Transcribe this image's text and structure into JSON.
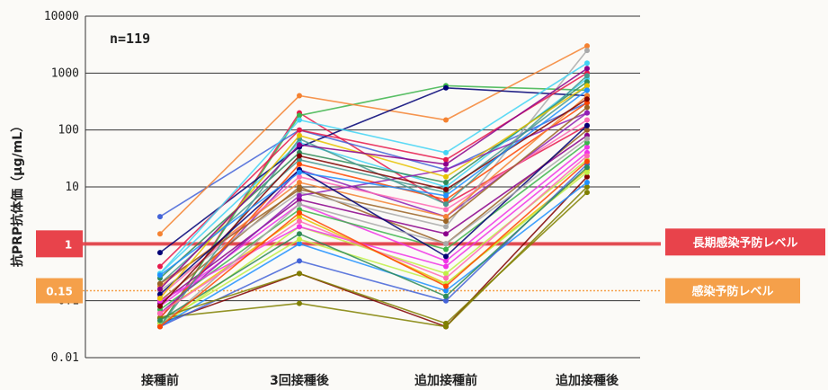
{
  "chart_data": {
    "type": "line",
    "ylabel": "抗PRP抗体価（μg/mL）",
    "yscale": "log",
    "ylim": [
      0.01,
      10000
    ],
    "yticks": [
      "0.01",
      "0.1",
      "1",
      "10",
      "100",
      "1000",
      "10000"
    ],
    "grid": true,
    "categories": [
      "接種前",
      "3回接種後",
      "追加接種前",
      "追加接種後"
    ],
    "annotation": "n=119",
    "reference_lines": [
      {
        "value": 1,
        "label": "長期感染予防レベル",
        "tick_label": "1",
        "color": "#e8434b"
      },
      {
        "value": 0.15,
        "label": "感染予防レベル",
        "tick_label": "0.15",
        "color": "#f5a04a"
      }
    ],
    "palette": [
      "#e6194b",
      "#3cb44b",
      "#4363d8",
      "#f58231",
      "#911eb4",
      "#42d4f4",
      "#f032e6",
      "#bfef45",
      "#469990",
      "#9a6324",
      "#800000",
      "#808000",
      "#000075",
      "#a9a9a9",
      "#e6c200",
      "#ff69b4",
      "#1e90ff",
      "#2e8b57",
      "#8b008b",
      "#ff4500"
    ],
    "series": [
      {
        "values": [
          0.035,
          200,
          5,
          120
        ]
      },
      {
        "values": [
          0.035,
          180,
          600,
          500
        ]
      },
      {
        "values": [
          3,
          100,
          20,
          300
        ]
      },
      {
        "values": [
          1.5,
          400,
          150,
          3000
        ]
      },
      {
        "values": [
          0.05,
          20,
          3,
          200
        ]
      },
      {
        "values": [
          0.3,
          60,
          10,
          800
        ]
      },
      {
        "values": [
          0.08,
          5,
          0.5,
          50
        ]
      },
      {
        "values": [
          0.035,
          2,
          0.3,
          30
        ]
      },
      {
        "values": [
          0.2,
          30,
          8,
          600
        ]
      },
      {
        "values": [
          0.1,
          10,
          1,
          100
        ]
      },
      {
        "values": [
          0.04,
          0.3,
          0.035,
          15
        ]
      },
      {
        "values": [
          0.05,
          0.09,
          0.035,
          10
        ]
      },
      {
        "values": [
          0.7,
          50,
          550,
          400
        ]
      },
      {
        "values": [
          0.15,
          8,
          2,
          2500
        ]
      },
      {
        "values": [
          0.06,
          3,
          0.2,
          20
        ]
      },
      {
        "values": [
          0.12,
          15,
          4,
          150
        ]
      },
      {
        "values": [
          0.035,
          1,
          0.15,
          12
        ]
      },
      {
        "values": [
          0.25,
          40,
          12,
          700
        ]
      },
      {
        "values": [
          0.09,
          6,
          1.5,
          80
        ]
      },
      {
        "values": [
          0.05,
          25,
          6,
          300
        ]
      },
      {
        "values": [
          0.4,
          100,
          30,
          1000
        ]
      },
      {
        "values": [
          0.07,
          4,
          0.8,
          60
        ]
      },
      {
        "values": [
          0.035,
          0.5,
          0.1,
          25
        ]
      },
      {
        "values": [
          0.18,
          12,
          3,
          400
        ]
      },
      {
        "values": [
          0.06,
          7,
          20,
          200
        ]
      },
      {
        "values": [
          0.3,
          150,
          40,
          1500
        ]
      },
      {
        "values": [
          0.1,
          2,
          0.4,
          40
        ]
      },
      {
        "values": [
          0.04,
          1.2,
          0.2,
          18
        ]
      },
      {
        "values": [
          0.035,
          70,
          5,
          900
        ]
      },
      {
        "values": [
          0.2,
          9,
          2.5,
          250
        ]
      },
      {
        "values": [
          0.08,
          35,
          9,
          350
        ]
      },
      {
        "values": [
          0.05,
          0.3,
          0.04,
          8
        ]
      },
      {
        "values": [
          0.13,
          20,
          0.6,
          120
        ]
      },
      {
        "values": [
          0.035,
          5,
          1,
          70
        ]
      },
      {
        "values": [
          0.11,
          80,
          15,
          600
        ]
      },
      {
        "values": [
          0.06,
          2.5,
          0.25,
          35
        ]
      },
      {
        "values": [
          0.28,
          18,
          7,
          500
        ]
      },
      {
        "values": [
          0.045,
          1.5,
          0.12,
          22
        ]
      },
      {
        "values": [
          0.16,
          55,
          25,
          1200
        ]
      },
      {
        "values": [
          0.035,
          3.5,
          0.18,
          28
        ]
      }
    ]
  }
}
